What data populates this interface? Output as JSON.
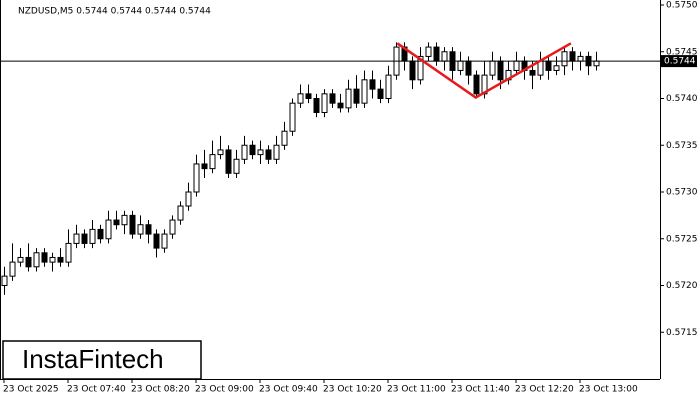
{
  "chart_data": {
    "type": "candlestick",
    "title": "NZDUSD,M5  0.5744 0.5744 0.5744 0.5744",
    "watermark": "InstaFintech",
    "categories": [
      "23 Oct 2025",
      null,
      null,
      null,
      null,
      null,
      null,
      null,
      "23 Oct 07:40",
      null,
      null,
      null,
      null,
      null,
      null,
      null,
      "23 Oct 08:20",
      null,
      null,
      null,
      null,
      null,
      null,
      null,
      "23 Oct 09:00",
      null,
      null,
      null,
      null,
      null,
      null,
      null,
      "23 Oct 09:40",
      null,
      null,
      null,
      null,
      null,
      null,
      null,
      "23 Oct 10:20",
      null,
      null,
      null,
      null,
      null,
      null,
      null,
      "23 Oct 11:00",
      null,
      null,
      null,
      null,
      null,
      null,
      null,
      "23 Oct 11:40",
      null,
      null,
      null,
      null,
      null,
      null,
      null,
      "23 Oct 12:20",
      null,
      null,
      null,
      null,
      null,
      null,
      null,
      "23 Oct 13:00",
      null,
      null
    ],
    "open": [
      0.572,
      0.5721,
      0.57225,
      0.5723,
      0.5722,
      0.57235,
      0.57225,
      0.5723,
      0.57225,
      0.57245,
      0.57255,
      0.57245,
      0.5726,
      0.5725,
      0.5727,
      0.57265,
      0.57275,
      0.57255,
      0.57265,
      0.57255,
      0.5724,
      0.57255,
      0.5727,
      0.57285,
      0.573,
      0.5733,
      0.57325,
      0.5734,
      0.57345,
      0.5732,
      0.57335,
      0.5735,
      0.5734,
      0.57345,
      0.57335,
      0.5735,
      0.57365,
      0.57395,
      0.57405,
      0.574,
      0.57385,
      0.57405,
      0.57395,
      0.5739,
      0.5741,
      0.57395,
      0.5742,
      0.5741,
      0.574,
      0.57425,
      0.57455,
      0.5744,
      0.5742,
      0.57445,
      0.57455,
      0.5744,
      0.5745,
      0.5743,
      0.5744,
      0.57425,
      0.57405,
      0.57425,
      0.5744,
      0.5742,
      0.5743,
      0.5744,
      0.5743,
      0.57425,
      0.5744,
      0.5743,
      0.57435,
      0.5745,
      0.5744,
      0.57445,
      0.57435
    ],
    "high": [
      0.5722,
      0.57245,
      0.5724,
      0.57245,
      0.5724,
      0.5724,
      0.57235,
      0.5724,
      0.5726,
      0.57265,
      0.5726,
      0.5727,
      0.57265,
      0.5728,
      0.5728,
      0.5728,
      0.5728,
      0.57275,
      0.5727,
      0.5726,
      0.5726,
      0.57275,
      0.5729,
      0.5731,
      0.5734,
      0.57345,
      0.57355,
      0.5736,
      0.5735,
      0.57345,
      0.5736,
      0.57355,
      0.57355,
      0.5735,
      0.5736,
      0.57375,
      0.574,
      0.57415,
      0.57415,
      0.57405,
      0.5741,
      0.5741,
      0.57405,
      0.5742,
      0.57425,
      0.5743,
      0.5743,
      0.5742,
      0.57435,
      0.5746,
      0.5746,
      0.57445,
      0.57455,
      0.5746,
      0.5746,
      0.57455,
      0.57455,
      0.5745,
      0.57445,
      0.5743,
      0.5744,
      0.5745,
      0.57445,
      0.5744,
      0.5745,
      0.57445,
      0.5744,
      0.5745,
      0.57445,
      0.57445,
      0.57455,
      0.57455,
      0.5745,
      0.5745,
      0.5745
    ],
    "low": [
      0.5719,
      0.57205,
      0.5722,
      0.57215,
      0.57215,
      0.5722,
      0.57215,
      0.5722,
      0.5722,
      0.5724,
      0.5724,
      0.5724,
      0.57245,
      0.57245,
      0.5726,
      0.57255,
      0.5725,
      0.5725,
      0.57245,
      0.5723,
      0.57235,
      0.5725,
      0.57265,
      0.5728,
      0.57295,
      0.57315,
      0.5732,
      0.57335,
      0.57315,
      0.57315,
      0.5733,
      0.57335,
      0.5733,
      0.5733,
      0.5733,
      0.57345,
      0.5736,
      0.5739,
      0.57395,
      0.5738,
      0.5738,
      0.5739,
      0.57385,
      0.57385,
      0.5739,
      0.5739,
      0.574,
      0.57395,
      0.57395,
      0.5742,
      0.5743,
      0.5741,
      0.57415,
      0.5744,
      0.57435,
      0.5743,
      0.5742,
      0.57425,
      0.57415,
      0.574,
      0.574,
      0.5742,
      0.5741,
      0.57415,
      0.57425,
      0.5742,
      0.5741,
      0.5742,
      0.5742,
      0.57425,
      0.57425,
      0.5743,
      0.5743,
      0.57425,
      0.5743
    ],
    "close": [
      0.5721,
      0.57225,
      0.5723,
      0.5722,
      0.57235,
      0.57225,
      0.5723,
      0.57225,
      0.57245,
      0.57255,
      0.57245,
      0.5726,
      0.5725,
      0.5727,
      0.57265,
      0.57275,
      0.57255,
      0.57265,
      0.57255,
      0.5724,
      0.57255,
      0.5727,
      0.57285,
      0.573,
      0.5733,
      0.57325,
      0.5734,
      0.57345,
      0.5732,
      0.57335,
      0.5735,
      0.5734,
      0.57345,
      0.57335,
      0.5735,
      0.57365,
      0.57395,
      0.57405,
      0.574,
      0.57385,
      0.57405,
      0.57395,
      0.5739,
      0.5741,
      0.57395,
      0.5742,
      0.5741,
      0.574,
      0.57425,
      0.57455,
      0.5744,
      0.5742,
      0.57445,
      0.57455,
      0.5744,
      0.5745,
      0.5743,
      0.5744,
      0.57425,
      0.57405,
      0.57425,
      0.5744,
      0.5742,
      0.5743,
      0.5744,
      0.5743,
      0.57425,
      0.5744,
      0.5743,
      0.57435,
      0.5745,
      0.5744,
      0.57445,
      0.57435,
      0.5744
    ],
    "last_price": 0.5744,
    "pattern": {
      "color": "#e8191a",
      "x": [
        49.1,
        58.9,
        70.8
      ],
      "values": [
        0.57459,
        0.57401,
        0.57459
      ]
    },
    "ylim": [
      0.571,
      0.575
    ],
    "yticks": [
      {
        "value": 0.575,
        "label": "0.5750"
      },
      0.5745,
      {
        "value": 0.574,
        "label": "0.5740"
      },
      0.5735,
      {
        "value": 0.573,
        "label": "0.5730"
      },
      0.5725,
      {
        "value": 0.572,
        "label": "0.5720"
      },
      0.5715
    ]
  }
}
